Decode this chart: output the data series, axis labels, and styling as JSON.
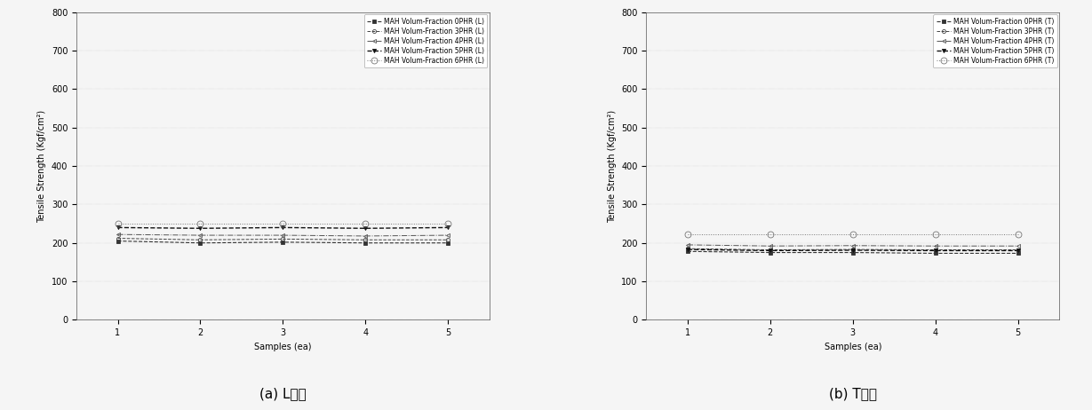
{
  "left": {
    "subtitle": "(a) L방향",
    "ylabel": "Tensile Strength (Kgf/cm²)",
    "xlabel": "Samples (ea)",
    "xlim": [
      0.5,
      5.5
    ],
    "ylim": [
      0,
      800
    ],
    "yticks": [
      0,
      100,
      200,
      300,
      400,
      500,
      600,
      700,
      800
    ],
    "xticks": [
      1,
      2,
      3,
      4,
      5
    ],
    "series": [
      {
        "label": "MAH Volum-Fraction 0PHR (L)",
        "values": [
          205,
          200,
          202,
          200,
          200
        ],
        "color": "#333333",
        "linestyle": "--",
        "marker": "s",
        "markersize": 3,
        "linewidth": 0.8,
        "markerfilled": true
      },
      {
        "label": "MAH Volum-Fraction 3PHR (L)",
        "values": [
          212,
          208,
          210,
          208,
          208
        ],
        "color": "#444444",
        "linestyle": "--",
        "marker": "o",
        "markersize": 3,
        "linewidth": 0.7,
        "markerfilled": false
      },
      {
        "label": "MAH Volum-Fraction 4PHR (L)",
        "values": [
          222,
          220,
          220,
          218,
          220
        ],
        "color": "#555555",
        "linestyle": "-.",
        "marker": "<",
        "markersize": 3,
        "linewidth": 0.7,
        "markerfilled": false
      },
      {
        "label": "MAH Volum-Fraction 5PHR (L)",
        "values": [
          240,
          238,
          240,
          238,
          240
        ],
        "color": "#111111",
        "linestyle": "--",
        "marker": "v",
        "markersize": 3,
        "linewidth": 1.0,
        "markerfilled": true
      },
      {
        "label": "MAH Volum-Fraction 6PHR (L)",
        "values": [
          250,
          250,
          250,
          250,
          250
        ],
        "color": "#777777",
        "linestyle": ":",
        "marker": "o",
        "markersize": 5,
        "linewidth": 0.7,
        "markerfilled": false
      }
    ]
  },
  "right": {
    "subtitle": "(b) T방향",
    "ylabel": "Tensile Strength (Kgf/cm²)",
    "xlabel": "Samples (ea)",
    "xlim": [
      0.5,
      5.5
    ],
    "ylim": [
      0,
      800
    ],
    "yticks": [
      0,
      100,
      200,
      300,
      400,
      500,
      600,
      700,
      800
    ],
    "xticks": [
      1,
      2,
      3,
      4,
      5
    ],
    "series": [
      {
        "label": "MAH Volum-Fraction 0PHR (T)",
        "values": [
          178,
          175,
          175,
          173,
          173
        ],
        "color": "#333333",
        "linestyle": "--",
        "marker": "s",
        "markersize": 3,
        "linewidth": 0.8,
        "markerfilled": true
      },
      {
        "label": "MAH Volum-Fraction 3PHR (T)",
        "values": [
          185,
          182,
          183,
          182,
          182
        ],
        "color": "#444444",
        "linestyle": "--",
        "marker": "o",
        "markersize": 3,
        "linewidth": 0.7,
        "markerfilled": false
      },
      {
        "label": "MAH Volum-Fraction 4PHR (T)",
        "values": [
          195,
          192,
          193,
          192,
          192
        ],
        "color": "#555555",
        "linestyle": "-.",
        "marker": "<",
        "markersize": 3,
        "linewidth": 0.7,
        "markerfilled": false
      },
      {
        "label": "MAH Volum-Fraction 5PHR (T)",
        "values": [
          183,
          180,
          181,
          180,
          180
        ],
        "color": "#111111",
        "linestyle": "--",
        "marker": "v",
        "markersize": 3,
        "linewidth": 1.0,
        "markerfilled": true
      },
      {
        "label": "MAH Volum-Fraction 6PHR (T)",
        "values": [
          222,
          222,
          222,
          222,
          222
        ],
        "color": "#777777",
        "linestyle": ":",
        "marker": "o",
        "markersize": 5,
        "linewidth": 0.7,
        "markerfilled": false
      }
    ]
  },
  "background_color": "#f5f5f5",
  "plot_bg_color": "#f5f5f5",
  "font_size": 7,
  "tick_fontsize": 7,
  "legend_fontsize": 5.5,
  "label_fontsize": 7,
  "subtitle_fontsize": 11
}
